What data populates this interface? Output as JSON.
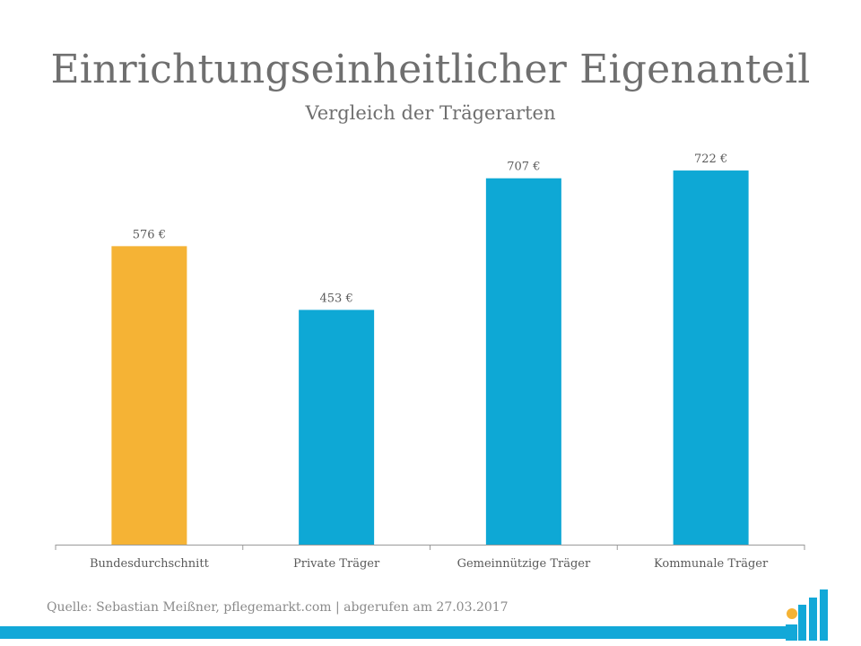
{
  "header": {
    "title": "Einrichtungseinheitlicher Eigenanteil",
    "subtitle": "Vergleich der Trägerarten"
  },
  "footer": {
    "source": "Quelle: Sebastian Meißner, pflegemarkt.com | abgerufen am 27.03.2017"
  },
  "colors": {
    "highlight": "#f5b335",
    "bar": "#0ea8d5",
    "stripe": "#12a8d8",
    "text": "#6f6f6f"
  },
  "icons": [
    "pflegemarkt-logo-icon"
  ],
  "chart_data": {
    "type": "bar",
    "title": "Einrichtungseinheitlicher Eigenanteil",
    "subtitle": "Vergleich der Trägerarten",
    "categories": [
      "Bundesdurchschnitt",
      "Private Träger",
      "Gemeinnützige Träger",
      "Kommunale Träger"
    ],
    "values": [
      576,
      453,
      707,
      722
    ],
    "data_labels": [
      "576 €",
      "453 €",
      "707 €",
      "722 €"
    ],
    "highlight_index": 0,
    "xlabel": "",
    "ylabel": "",
    "ylim": [
      0,
      800
    ],
    "grid": false,
    "legend": "none"
  }
}
